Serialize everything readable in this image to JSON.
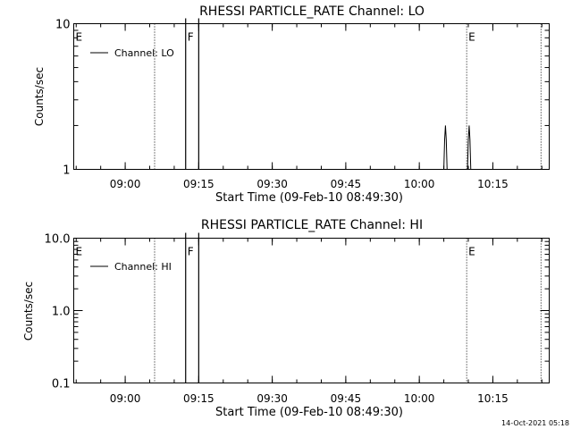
{
  "footer": {
    "timestamp": "14-Oct-2021 05:18"
  },
  "chart_data": [
    {
      "type": "line",
      "title": "RHESSI PARTICLE_RATE Channel: LO",
      "xlabel": "Start Time (09-Feb-10 08:49:30)",
      "ylabel": "Counts/sec",
      "yscale": "log",
      "ylim": [
        1,
        10
      ],
      "xlim": [
        "08:49:30",
        "10:26:30"
      ],
      "x_ticks": [
        "09:00",
        "09:15",
        "09:30",
        "09:45",
        "10:00",
        "10:15"
      ],
      "y_ticks": [
        "1",
        "10"
      ],
      "legend": {
        "label": "Channel: LO",
        "placement": "top-left"
      },
      "markers": [
        {
          "label": "E",
          "time": "08:49:30"
        },
        {
          "label": "F",
          "time": "09:12:20"
        },
        {
          "label": "E",
          "time": "10:09:40"
        }
      ],
      "dotted_lines": [
        "09:06:00",
        "10:09:40",
        "10:24:50"
      ],
      "solid_lines": [
        "09:12:20",
        "09:15:00"
      ],
      "series": [
        {
          "name": "Channel: LO",
          "points": [
            [
              "10:05:00",
              1
            ],
            [
              "10:05:10",
              1.6
            ],
            [
              "10:05:20",
              2.0
            ],
            [
              "10:05:30",
              1.6
            ],
            [
              "10:05:40",
              1
            ],
            [
              "10:09:50",
              1
            ],
            [
              "10:10:00",
              1.6
            ],
            [
              "10:10:10",
              2.0
            ],
            [
              "10:10:20",
              1.6
            ],
            [
              "10:10:30",
              1
            ]
          ]
        }
      ]
    },
    {
      "type": "line",
      "title": "RHESSI PARTICLE_RATE Channel: HI",
      "xlabel": "Start Time (09-Feb-10 08:49:30)",
      "ylabel": "Counts/sec",
      "yscale": "log",
      "ylim": [
        0.1,
        10
      ],
      "xlim": [
        "08:49:30",
        "10:26:30"
      ],
      "x_ticks": [
        "09:00",
        "09:15",
        "09:30",
        "09:45",
        "10:00",
        "10:15"
      ],
      "y_ticks": [
        "0.1",
        "1.0",
        "10.0"
      ],
      "legend": {
        "label": "Channel: HI",
        "placement": "top-left"
      },
      "markers": [
        {
          "label": "E",
          "time": "08:49:30"
        },
        {
          "label": "F",
          "time": "09:12:20"
        },
        {
          "label": "E",
          "time": "10:09:40"
        }
      ],
      "dotted_lines": [
        "09:06:00",
        "10:09:40",
        "10:24:50"
      ],
      "solid_lines": [
        "09:12:20",
        "09:15:00"
      ],
      "series": []
    }
  ]
}
